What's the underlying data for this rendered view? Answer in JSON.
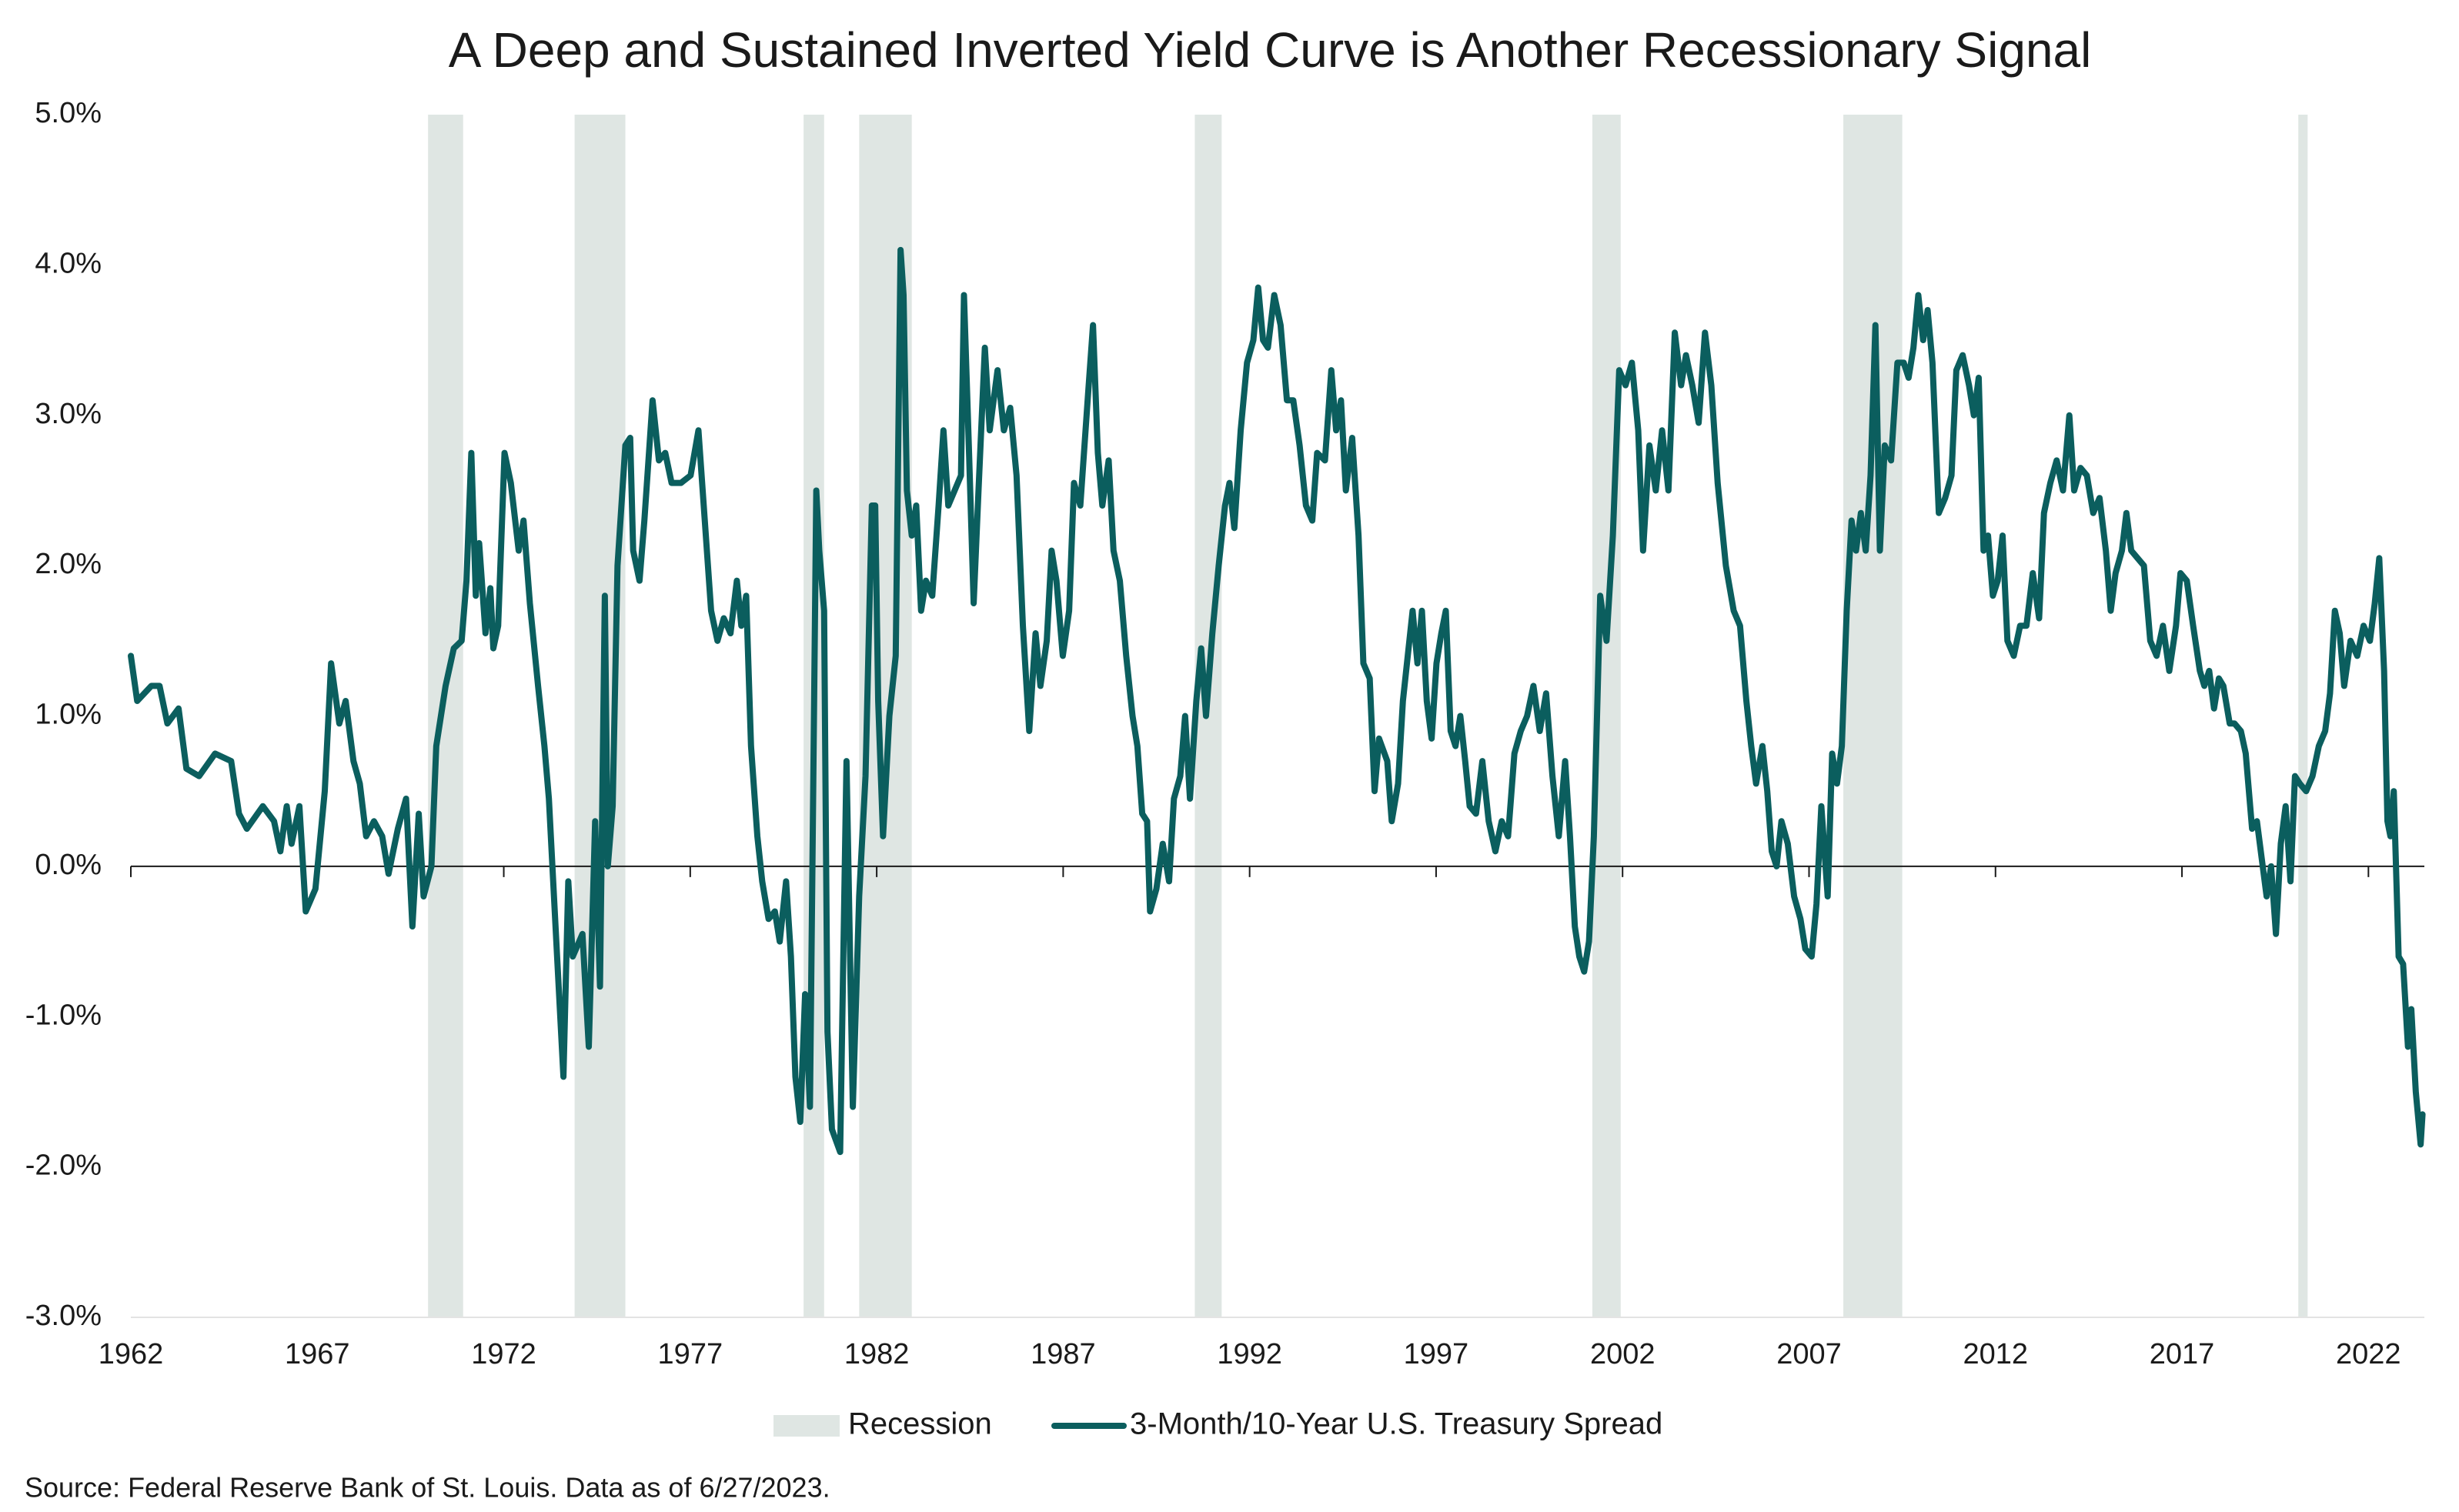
{
  "chart_data": {
    "type": "line",
    "title": "A Deep and Sustained Inverted Yield Curve is Another Recessionary Signal",
    "source": "Source: Federal Reserve Bank of St. Louis. Data as of 6/27/2023.",
    "xlim": [
      1962,
      2023.5
    ],
    "xticks": [
      1962,
      1967,
      1972,
      1977,
      1982,
      1987,
      1992,
      1997,
      2002,
      2007,
      2012,
      2017,
      2022
    ],
    "ylim": [
      -3,
      5
    ],
    "yticks": [
      {
        "value": -3,
        "label": "-3.0%"
      },
      {
        "value": -2,
        "label": "-2.0%"
      },
      {
        "value": -1,
        "label": "-1.0%"
      },
      {
        "value": 0,
        "label": "0.0%"
      },
      {
        "value": 1,
        "label": "1.0%"
      },
      {
        "value": 2,
        "label": "2.0%"
      },
      {
        "value": 3,
        "label": "3.0%"
      },
      {
        "value": 4,
        "label": "4.0%"
      },
      {
        "value": 5,
        "label": "5.0%"
      }
    ],
    "grid": false,
    "legend": "bottom",
    "recessions": {
      "name": "Recession",
      "color": "#dfe6e3",
      "ranges": [
        [
          1969.97,
          1970.91
        ],
        [
          1973.9,
          1975.26
        ],
        [
          1980.04,
          1980.59
        ],
        [
          1981.53,
          1982.94
        ],
        [
          1990.53,
          1991.25
        ],
        [
          2001.19,
          2001.95
        ],
        [
          2007.92,
          2009.5
        ],
        [
          2020.12,
          2020.37
        ]
      ]
    },
    "x": [
      1962.0,
      1962.17,
      1962.55,
      1962.77,
      1962.98,
      1963.28,
      1963.49,
      1963.83,
      1964.26,
      1964.69,
      1964.9,
      1965.11,
      1965.54,
      1965.84,
      1966.01,
      1966.18,
      1966.31,
      1966.52,
      1966.69,
      1966.95,
      1967.2,
      1967.37,
      1967.59,
      1967.76,
      1967.97,
      1968.14,
      1968.31,
      1968.52,
      1968.74,
      1968.91,
      1969.16,
      1969.38,
      1969.55,
      1969.72,
      1969.85,
      1970.06,
      1970.19,
      1970.44,
      1970.66,
      1970.87,
      1971.0,
      1971.13,
      1971.25,
      1971.34,
      1971.51,
      1971.64,
      1971.72,
      1971.85,
      1972.02,
      1972.19,
      1972.4,
      1972.53,
      1972.7,
      1972.92,
      1973.09,
      1973.21,
      1973.43,
      1973.6,
      1973.73,
      1973.85,
      1974.11,
      1974.28,
      1974.45,
      1974.58,
      1974.71,
      1974.79,
      1974.92,
      1975.05,
      1975.26,
      1975.39,
      1975.47,
      1975.64,
      1975.77,
      1975.99,
      1976.16,
      1976.33,
      1976.5,
      1976.75,
      1977.01,
      1977.22,
      1977.39,
      1977.56,
      1977.73,
      1977.9,
      1978.08,
      1978.25,
      1978.37,
      1978.5,
      1978.63,
      1978.8,
      1978.93,
      1979.1,
      1979.27,
      1979.4,
      1979.57,
      1979.7,
      1979.82,
      1979.95,
      1980.08,
      1980.21,
      1980.38,
      1980.46,
      1980.59,
      1980.68,
      1980.8,
      1981.02,
      1981.19,
      1981.36,
      1981.53,
      1981.7,
      1981.87,
      1981.96,
      1982.04,
      1982.17,
      1982.34,
      1982.51,
      1982.64,
      1982.72,
      1982.81,
      1982.94,
      1983.06,
      1983.19,
      1983.32,
      1983.49,
      1983.66,
      1983.79,
      1983.92,
      1984.09,
      1984.26,
      1984.34,
      1984.47,
      1984.6,
      1984.73,
      1984.9,
      1985.03,
      1985.24,
      1985.41,
      1985.58,
      1985.75,
      1985.92,
      1986.09,
      1986.26,
      1986.39,
      1986.56,
      1986.69,
      1986.82,
      1986.99,
      1987.16,
      1987.29,
      1987.46,
      1987.67,
      1987.8,
      1987.93,
      1988.05,
      1988.22,
      1988.35,
      1988.52,
      1988.69,
      1988.86,
      1988.99,
      1989.12,
      1989.25,
      1989.33,
      1989.5,
      1989.67,
      1989.84,
      1989.97,
      1990.14,
      1990.27,
      1990.4,
      1990.57,
      1990.7,
      1990.83,
      1991.0,
      1991.17,
      1991.34,
      1991.46,
      1991.59,
      1991.76,
      1991.93,
      1992.1,
      1992.23,
      1992.36,
      1992.49,
      1992.66,
      1992.83,
      1993.0,
      1993.17,
      1993.34,
      1993.51,
      1993.68,
      1993.81,
      1994.02,
      1994.19,
      1994.32,
      1994.45,
      1994.58,
      1994.75,
      1994.92,
      1995.05,
      1995.22,
      1995.35,
      1995.47,
      1995.69,
      1995.81,
      1995.98,
      1996.11,
      1996.24,
      1996.37,
      1996.5,
      1996.62,
      1996.75,
      1996.88,
      1997.01,
      1997.14,
      1997.26,
      1997.39,
      1997.52,
      1997.65,
      1997.78,
      1997.9,
      1998.07,
      1998.24,
      1998.41,
      1998.59,
      1998.76,
      1998.93,
      1999.1,
      1999.27,
      1999.44,
      1999.61,
      1999.78,
      1999.95,
      2000.12,
      2000.29,
      2000.46,
      2000.59,
      2000.72,
      2000.84,
      2000.97,
      2001.1,
      2001.23,
      2001.4,
      2001.57,
      2001.74,
      2001.91,
      2002.08,
      2002.25,
      2002.42,
      2002.55,
      2002.72,
      2002.89,
      2003.06,
      2003.23,
      2003.4,
      2003.57,
      2003.7,
      2003.87,
      2004.04,
      2004.21,
      2004.38,
      2004.55,
      2004.77,
      2004.98,
      2005.15,
      2005.32,
      2005.45,
      2005.58,
      2005.75,
      2005.88,
      2006.0,
      2006.13,
      2006.26,
      2006.43,
      2006.6,
      2006.77,
      2006.9,
      2007.07,
      2007.2,
      2007.33,
      2007.5,
      2007.62,
      2007.75,
      2007.88,
      2008.01,
      2008.14,
      2008.26,
      2008.39,
      2008.52,
      2008.65,
      2008.78,
      2008.9,
      2009.03,
      2009.2,
      2009.37,
      2009.54,
      2009.67,
      2009.8,
      2009.93,
      2010.06,
      2010.18,
      2010.31,
      2010.48,
      2010.65,
      2010.82,
      2010.95,
      2011.12,
      2011.29,
      2011.42,
      2011.55,
      2011.68,
      2011.8,
      2011.93,
      2012.06,
      2012.19,
      2012.32,
      2012.49,
      2012.66,
      2012.83,
      2013.0,
      2013.17,
      2013.3,
      2013.47,
      2013.64,
      2013.81,
      2013.98,
      2014.11,
      2014.28,
      2014.45,
      2014.62,
      2014.79,
      2014.96,
      2015.09,
      2015.22,
      2015.39,
      2015.51,
      2015.64,
      2015.81,
      2015.98,
      2016.15,
      2016.32,
      2016.49,
      2016.66,
      2016.84,
      2016.96,
      2017.13,
      2017.3,
      2017.48,
      2017.6,
      2017.73,
      2017.86,
      2017.99,
      2018.11,
      2018.28,
      2018.41,
      2018.58,
      2018.71,
      2018.88,
      2019.01,
      2019.14,
      2019.27,
      2019.39,
      2019.52,
      2019.65,
      2019.78,
      2019.91,
      2020.03,
      2020.16,
      2020.33,
      2020.5,
      2020.67,
      2020.84,
      2020.97,
      2021.1,
      2021.23,
      2021.35,
      2021.52,
      2021.7,
      2021.87,
      2022.04,
      2022.17,
      2022.29,
      2022.42,
      2022.51,
      2022.59,
      2022.68,
      2022.81,
      2022.93,
      2023.06,
      2023.15,
      2023.27,
      2023.4,
      2023.45
    ],
    "series": [
      {
        "name": "3-Month/10-Year U.S. Treasury Spread",
        "color": "#0b5e5e",
        "values": [
          1.4,
          1.1,
          1.2,
          1.2,
          0.95,
          1.05,
          0.65,
          0.6,
          0.75,
          0.7,
          0.35,
          0.25,
          0.4,
          0.3,
          0.1,
          0.4,
          0.15,
          0.4,
          -0.3,
          -0.15,
          0.5,
          1.35,
          0.95,
          1.1,
          0.7,
          0.55,
          0.2,
          0.3,
          0.2,
          -0.05,
          0.25,
          0.45,
          -0.4,
          0.35,
          -0.2,
          0,
          0.8,
          1.2,
          1.45,
          1.5,
          1.9,
          2.75,
          1.8,
          2.15,
          1.55,
          1.85,
          1.45,
          1.6,
          2.75,
          2.55,
          2.1,
          2.3,
          1.75,
          1.2,
          0.8,
          0.45,
          -0.6,
          -1.4,
          -0.1,
          -0.6,
          -0.45,
          -1.2,
          0.3,
          -0.8,
          1.8,
          0,
          0.4,
          2.0,
          2.8,
          2.85,
          2.1,
          1.9,
          2.3,
          3.1,
          2.7,
          2.75,
          2.55,
          2.55,
          2.6,
          2.9,
          2.3,
          1.7,
          1.5,
          1.65,
          1.55,
          1.9,
          1.6,
          1.8,
          0.8,
          0.2,
          -0.1,
          -0.35,
          -0.3,
          -0.5,
          -0.1,
          -0.6,
          -1.4,
          -1.7,
          -0.85,
          -1.6,
          2.5,
          2.1,
          1.7,
          -1.1,
          -1.75,
          -1.9,
          0.7,
          -1.6,
          -0.2,
          0.6,
          2.4,
          2.4,
          1.1,
          0.2,
          1.0,
          1.4,
          4.1,
          3.8,
          2.5,
          2.2,
          2.4,
          1.7,
          1.9,
          1.8,
          2.4,
          2.9,
          2.4,
          2.5,
          2.6,
          3.8,
          2.8,
          1.75,
          2.5,
          3.45,
          2.9,
          3.3,
          2.9,
          3.05,
          2.6,
          1.6,
          0.9,
          1.55,
          1.2,
          1.5,
          2.1,
          1.9,
          1.4,
          1.7,
          2.55,
          2.4,
          3.15,
          3.6,
          2.75,
          2.4,
          2.7,
          2.1,
          1.9,
          1.4,
          1.0,
          0.8,
          0.35,
          0.3,
          -0.3,
          -0.15,
          0.15,
          -0.1,
          0.45,
          0.6,
          1.0,
          0.45,
          1.1,
          1.45,
          1.0,
          1.55,
          2.0,
          2.4,
          2.55,
          2.25,
          2.9,
          3.35,
          3.5,
          3.85,
          3.5,
          3.45,
          3.8,
          3.6,
          3.1,
          3.1,
          2.8,
          2.4,
          2.3,
          2.75,
          2.7,
          3.3,
          2.9,
          3.1,
          2.5,
          2.85,
          2.2,
          1.35,
          1.25,
          0.5,
          0.85,
          0.7,
          0.3,
          0.55,
          1.1,
          1.4,
          1.7,
          1.35,
          1.7,
          1.1,
          0.85,
          1.35,
          1.55,
          1.7,
          0.9,
          0.8,
          1.0,
          0.7,
          0.4,
          0.35,
          0.7,
          0.3,
          0.1,
          0.3,
          0.2,
          0.75,
          0.9,
          1.0,
          1.2,
          0.9,
          1.15,
          0.6,
          0.2,
          0.7,
          0.2,
          -0.4,
          -0.6,
          -0.7,
          -0.5,
          0.2,
          1.8,
          1.5,
          2.2,
          3.3,
          3.2,
          3.35,
          2.9,
          2.1,
          2.8,
          2.5,
          2.9,
          2.5,
          3.55,
          3.2,
          3.4,
          3.2,
          2.95,
          3.55,
          3.2,
          2.55,
          2.0,
          1.7,
          1.6,
          1.1,
          0.8,
          0.55,
          0.8,
          0.5,
          0.1,
          0,
          0.3,
          0.15,
          -0.2,
          -0.35,
          -0.55,
          -0.6,
          -0.25,
          0.4,
          -0.2,
          0.75,
          0.55,
          0.8,
          1.7,
          2.3,
          2.1,
          2.35,
          2.1,
          2.6,
          3.6,
          2.1,
          2.8,
          2.7,
          3.35,
          3.35,
          3.25,
          3.45,
          3.8,
          3.5,
          3.7,
          3.35,
          2.35,
          2.45,
          2.6,
          3.3,
          3.4,
          3.2,
          3.0,
          3.25,
          2.1,
          2.2,
          1.8,
          1.9,
          2.2,
          1.5,
          1.4,
          1.6,
          1.6,
          1.95,
          1.65,
          2.35,
          2.55,
          2.7,
          2.5,
          3.0,
          2.5,
          2.65,
          2.6,
          2.35,
          2.45,
          2.1,
          1.7,
          1.95,
          2.1,
          2.35,
          2.1,
          2.05,
          2.0,
          1.5,
          1.4,
          1.6,
          1.3,
          1.6,
          1.95,
          1.9,
          1.6,
          1.3,
          1.2,
          1.3,
          1.05,
          1.25,
          1.2,
          0.95,
          0.95,
          0.9,
          0.75,
          0.25,
          0.3,
          0.05,
          -0.2,
          0,
          -0.45,
          0.15,
          0.4,
          -0.1,
          0.6,
          0.55,
          0.5,
          0.6,
          0.8,
          0.9,
          1.15,
          1.7,
          1.55,
          1.2,
          1.5,
          1.4,
          1.6,
          1.5,
          1.75,
          2.05,
          1.3,
          0.3,
          0.2,
          0.5,
          -0.6,
          -0.65,
          -1.2,
          -0.95,
          -1.5,
          -1.85,
          -1.65
        ]
      }
    ]
  }
}
